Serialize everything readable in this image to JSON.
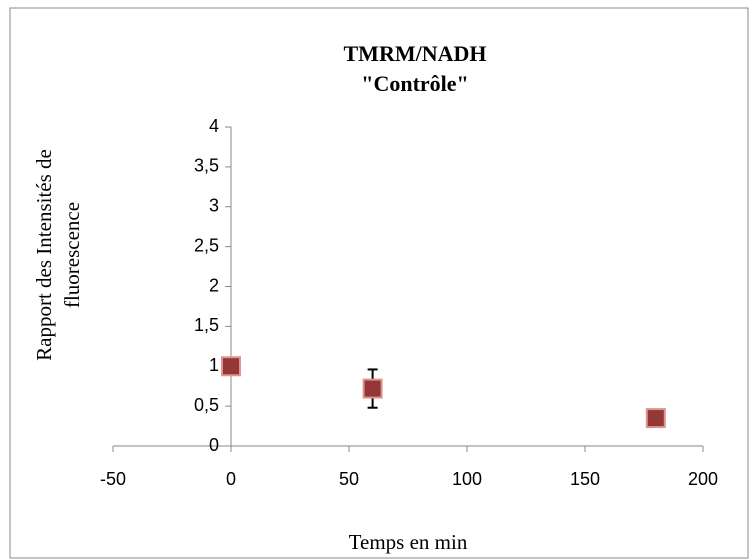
{
  "chart_data": {
    "type": "scatter",
    "title": [
      "TMRM/NADH",
      "\"Contrôle\""
    ],
    "ylabel": [
      "Rapport des Intensités  de",
      "fluorescence"
    ],
    "xlabel": "Temps en min",
    "x": [
      0,
      60,
      180
    ],
    "values": [
      1,
      0.72,
      0.35
    ],
    "errors": [
      0,
      0.24,
      0
    ],
    "color": "#953735",
    "xlim": [
      -50,
      200
    ],
    "xticks": [
      -50,
      0,
      50,
      100,
      150,
      200
    ],
    "ylim": [
      0,
      4
    ],
    "yticks": [
      0,
      {
        "value": 0.5,
        "label": "0,5"
      },
      1,
      {
        "value": 1.5,
        "label": "1,5"
      },
      2,
      {
        "value": 2.5,
        "label": "2,5"
      },
      3,
      {
        "value": 3.5,
        "label": "3,5"
      },
      4
    ]
  }
}
